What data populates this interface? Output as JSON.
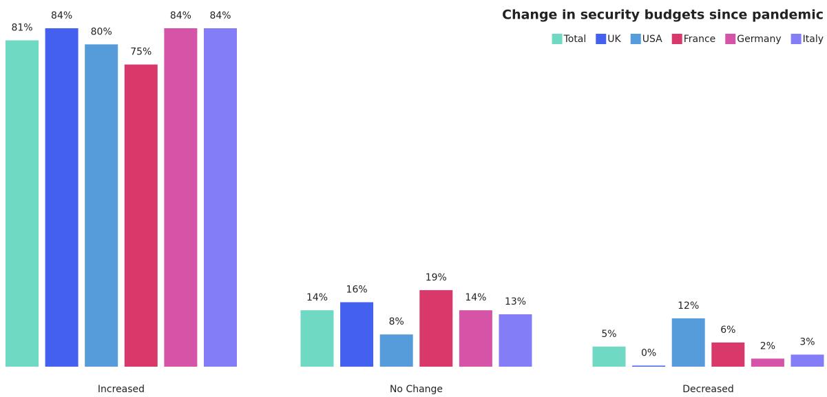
{
  "chart_data": {
    "type": "bar",
    "title": "Change in security budgets since pandemic",
    "categories": [
      "Increased",
      "No Change",
      "Decreased"
    ],
    "series": [
      {
        "name": "Total",
        "color": "#6fd9c4",
        "values": [
          81,
          14,
          5
        ],
        "value_labels": [
          "81%",
          "14%",
          "5%"
        ]
      },
      {
        "name": "UK",
        "color": "#4361ee",
        "values": [
          84,
          16,
          0
        ],
        "value_labels": [
          "84%",
          "16%",
          "0%"
        ]
      },
      {
        "name": "USA",
        "color": "#569cdb",
        "values": [
          80,
          8,
          12
        ],
        "value_labels": [
          "80%",
          "8%",
          "12%"
        ]
      },
      {
        "name": "France",
        "color": "#d9386b",
        "values": [
          75,
          19,
          6
        ],
        "value_labels": [
          "75%",
          "19%",
          "6%"
        ]
      },
      {
        "name": "Germany",
        "color": "#d654a8",
        "values": [
          84,
          14,
          2
        ],
        "value_labels": [
          "84%",
          "14%",
          "2%"
        ]
      },
      {
        "name": "Italy",
        "color": "#837ef7",
        "values": [
          84,
          13,
          3
        ],
        "value_labels": [
          "84%",
          "13%",
          "3%"
        ]
      }
    ],
    "legend": "top-right"
  }
}
